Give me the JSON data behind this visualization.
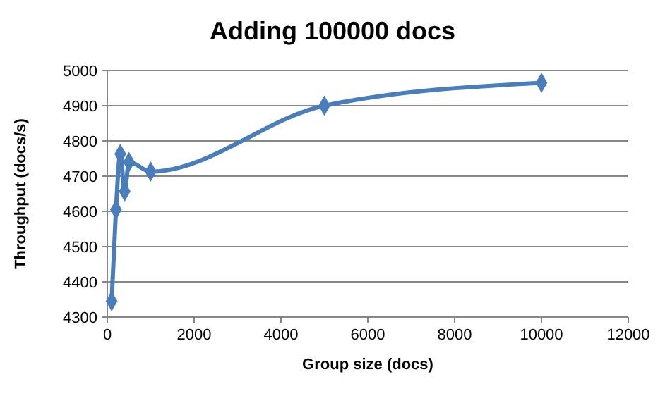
{
  "chart_data": {
    "type": "line",
    "title": "Adding 100000 docs",
    "xlabel": "Group size (docs)",
    "ylabel": "Throughput (docs/s)",
    "x": [
      100,
      200,
      300,
      400,
      500,
      1000,
      5000,
      10000
    ],
    "series": [
      {
        "color": "#4a7ebb",
        "values": [
          4345,
          4605,
          4763,
          4657,
          4740,
          4713,
          4900,
          4965
        ]
      }
    ],
    "xlim": [
      0,
      12000
    ],
    "xticks": [
      0,
      2000,
      4000,
      6000,
      8000,
      10000,
      12000
    ],
    "ylim": [
      4300,
      5000
    ],
    "yticks": [
      4300,
      4400,
      4500,
      4600,
      4700,
      4800,
      4900,
      5000
    ],
    "grid": "y",
    "marker": "diamond",
    "line_style": "solid"
  }
}
